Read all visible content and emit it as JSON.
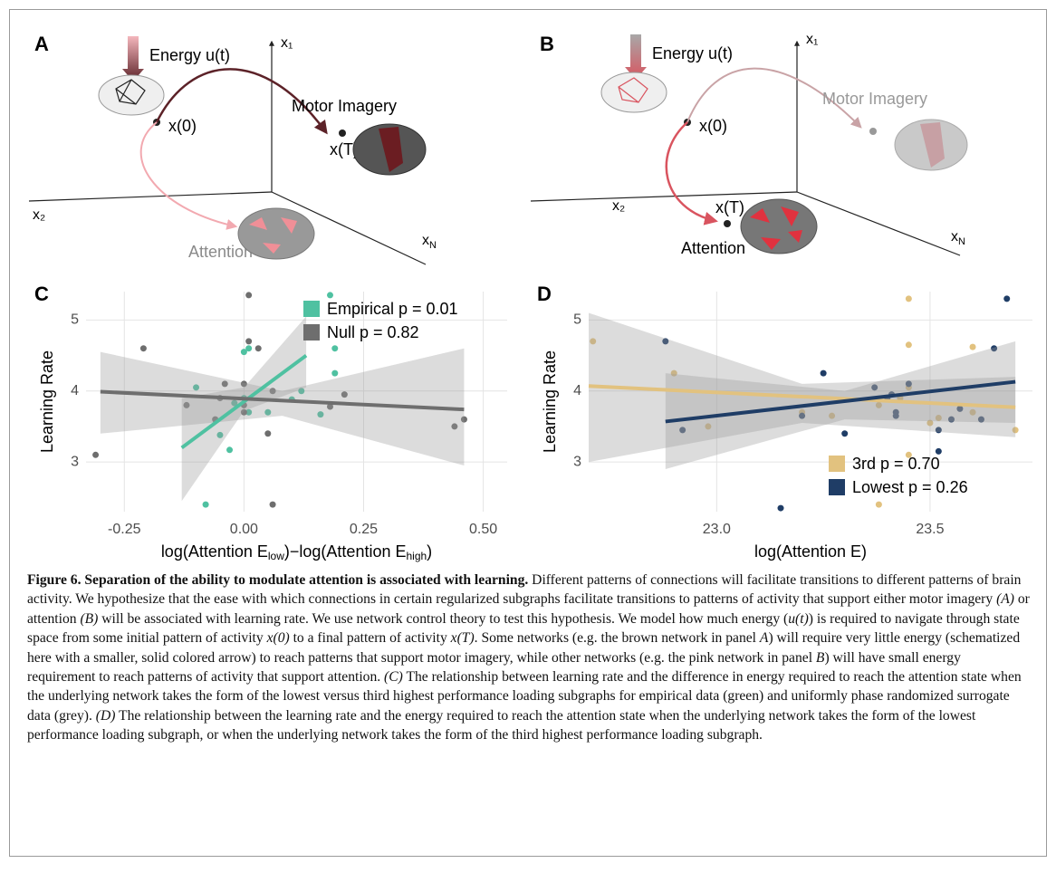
{
  "diagrams": [
    {
      "letter": "A",
      "energy": "Energy u(t)",
      "start": "x(0)",
      "end": "x(T)",
      "motor": "Motor Imagery",
      "attention": "Attention",
      "axis_1": "x₁",
      "axis_2": "x₂",
      "axis_n": [
        "x",
        "N"
      ]
    },
    {
      "letter": "B",
      "energy": "Energy u(t)",
      "start": "x(0)",
      "end": "x(T)",
      "motor": "Motor Imagery",
      "attention": "Attention",
      "axis_1": "x₁",
      "axis_2": "x₂",
      "axis_n": [
        "x",
        "N"
      ]
    }
  ],
  "chart_data": [
    {
      "type": "scatter",
      "panel": "C",
      "ylabel": "Learning Rate",
      "xlabel_parts": [
        "log(Attention E",
        "low",
        ")−log(Attention E",
        "high",
        ")"
      ],
      "xlim": [
        -0.33,
        0.55
      ],
      "ylim": [
        2.3,
        5.4
      ],
      "xticks": [
        -0.25,
        {
          "value": 0,
          "label": "0.00"
        },
        0.25,
        {
          "value": 0.5,
          "label": "0.50"
        }
      ],
      "yticks": [
        3,
        4,
        5
      ],
      "grid": true,
      "legend": "top-right",
      "series": [
        {
          "name": "Empirical p = 0.01",
          "color": "#4fc1a1",
          "x": [
            0.18,
            0.01,
            0.0,
            0.12,
            0.19,
            0.19,
            -0.1,
            0.0,
            -0.02,
            0.01,
            0.05,
            0.1,
            0.16,
            -0.05,
            -0.03,
            -0.08
          ],
          "values": [
            5.35,
            4.6,
            4.55,
            4.0,
            4.25,
            4.6,
            4.05,
            3.9,
            3.83,
            3.7,
            3.7,
            3.88,
            3.67,
            3.38,
            3.17,
            2.4
          ],
          "fit": {
            "x": [
              -0.13,
              0.13
            ],
            "values": [
              3.2,
              4.5
            ]
          },
          "band": {
            "x": [
              -0.13,
              0,
              0.13
            ],
            "lower": [
              2.45,
              3.72,
              4.05
            ],
            "upper": [
              3.9,
              4.05,
              5.05
            ]
          }
        },
        {
          "name": "Null p = 0.82",
          "color": "#6e6e6e",
          "x": [
            -0.31,
            -0.21,
            -0.12,
            -0.06,
            -0.04,
            -0.05,
            0.0,
            0.0,
            0.01,
            0.03,
            0.01,
            0.06,
            0.06,
            0.05,
            0.18,
            0.21,
            0.44,
            0.46,
            0.0
          ],
          "values": [
            3.1,
            4.6,
            3.8,
            3.6,
            4.1,
            3.9,
            4.1,
            3.8,
            4.7,
            4.6,
            5.35,
            4.0,
            2.4,
            3.4,
            3.78,
            3.95,
            3.5,
            3.6,
            3.7
          ],
          "fit": {
            "x": [
              -0.3,
              0.46
            ],
            "values": [
              3.99,
              3.74
            ]
          },
          "band": {
            "x": [
              -0.3,
              0.08,
              0.46
            ],
            "lower": [
              3.4,
              3.65,
              2.95
            ],
            "upper": [
              4.55,
              4.0,
              4.6
            ]
          }
        }
      ]
    },
    {
      "type": "scatter",
      "panel": "D",
      "ylabel": "Learning Rate",
      "xlabel_parts": [
        "log(Attention E)"
      ],
      "xlim": [
        22.7,
        23.74
      ],
      "ylim": [
        2.3,
        5.4
      ],
      "xticks": [
        {
          "value": 23,
          "label": "23.0"
        },
        23.5
      ],
      "yticks": [
        3,
        4,
        5
      ],
      "grid": true,
      "legend": "bottom-right",
      "series": [
        {
          "name": "3rd p = 0.70",
          "color": "#e2c27f",
          "x": [
            22.71,
            22.9,
            22.98,
            23.27,
            23.43,
            23.45,
            23.45,
            23.45,
            23.5,
            23.45,
            23.7,
            23.52,
            23.38,
            23.2,
            23.6,
            23.6,
            23.38
          ],
          "values": [
            4.7,
            4.25,
            3.5,
            3.65,
            3.9,
            5.3,
            4.65,
            4.05,
            3.55,
            3.1,
            3.45,
            3.62,
            3.8,
            3.7,
            4.62,
            3.7,
            2.4
          ],
          "fit": {
            "x": [
              22.7,
              23.7
            ],
            "values": [
              4.07,
              3.77
            ]
          },
          "band": {
            "x": [
              22.7,
              23.2,
              23.7
            ],
            "lower": [
              3.0,
              3.55,
              3.35
            ],
            "upper": [
              5.1,
              4.1,
              4.2
            ]
          }
        },
        {
          "name": "Lowest p = 0.26",
          "color": "#1f3d66",
          "x": [
            22.88,
            22.92,
            23.2,
            23.25,
            23.15,
            23.3,
            23.37,
            23.4,
            23.41,
            23.42,
            23.45,
            23.52,
            23.52,
            23.57,
            23.62,
            23.65,
            23.68,
            23.55,
            23.42
          ],
          "values": [
            4.7,
            3.45,
            3.65,
            4.25,
            2.35,
            3.4,
            4.05,
            3.9,
            3.95,
            3.65,
            4.1,
            3.45,
            3.15,
            3.75,
            3.6,
            4.6,
            5.3,
            3.6,
            3.7
          ],
          "fit": {
            "x": [
              22.88,
              23.7
            ],
            "values": [
              3.57,
              4.13
            ]
          },
          "band": {
            "x": [
              22.88,
              23.3,
              23.7
            ],
            "lower": [
              2.9,
              3.6,
              3.55
            ],
            "upper": [
              4.25,
              4.0,
              4.7
            ]
          }
        }
      ]
    }
  ],
  "caption": {
    "title": "Figure 6. Separation of the ability to modulate attention is associated with learning.",
    "body": [
      " Different patterns of connections will facilitate transitions to different patterns of brain activity. We hypothesize that the ease with which connections in certain regularized subgraphs facilitate transitions to patterns of activity that support either motor imagery ",
      "(A)",
      " or attention ",
      "(B)",
      " will be associated with learning rate. We use network control theory to test this hypothesis. We model how much energy (",
      "u(t)",
      ") is required to navigate through state space from some initial pattern of activity ",
      "x(0)",
      " to a final pattern of activity ",
      "x(T)",
      ". Some networks (e.g. the brown network in panel ",
      "A",
      ") will require very little energy (schematized here with a smaller, solid colored arrow) to reach patterns that support motor imagery, while other networks (e.g. the pink network in panel ",
      "B",
      ") will have small energy requirement to reach patterns of activity that support attention. ",
      "(C)",
      " The relationship between learning rate and the difference in energy required to reach the attention state when the underlying network takes the form of the lowest versus third highest performance loading subgraphs for empirical data (green) and uniformly phase randomized surrogate data (grey). ",
      "(D)",
      " The relationship between the learning rate and the energy required to reach the attention state when the underlying network takes the form of the lowest performance loading subgraph, or when the underlying network takes the form of the third highest performance loading subgraph."
    ]
  }
}
